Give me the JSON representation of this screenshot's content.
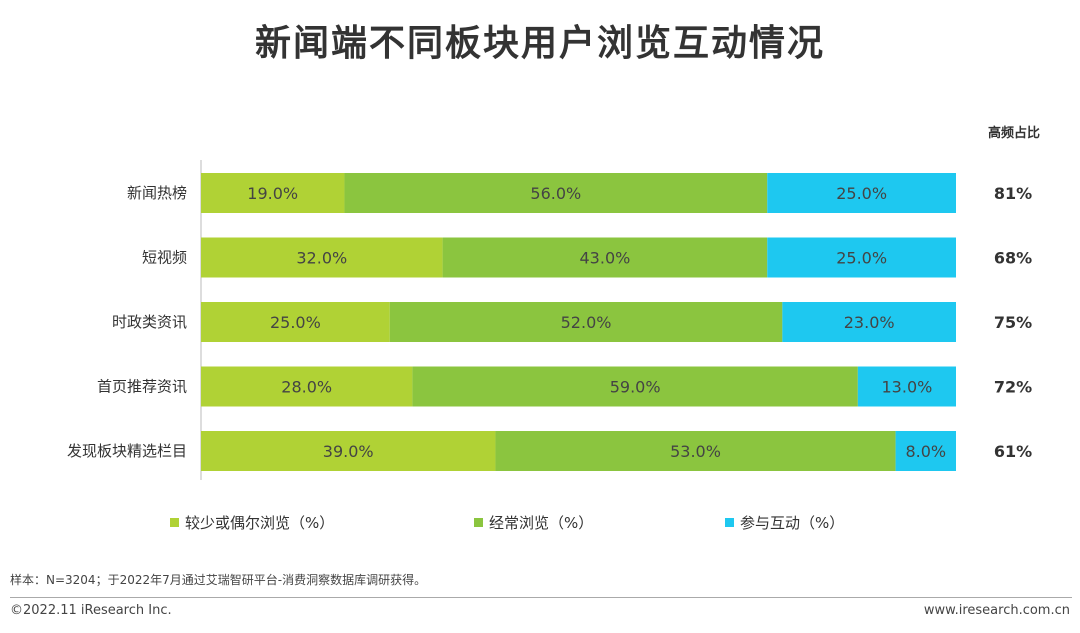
{
  "title": "新闻端不同板块用户浏览互动情况",
  "side_header": "高频占比",
  "chart_data": {
    "type": "bar",
    "orientation": "horizontal",
    "stacked": true,
    "unit": "%",
    "categories": [
      "新闻热榜",
      "短视频",
      "时政类资讯",
      "首页推荐资讯",
      "发现板块精选栏目"
    ],
    "series": [
      {
        "name": "较少或偶尔浏览（%）",
        "color": "#b0d235",
        "values": [
          19.0,
          32.0,
          25.0,
          28.0,
          39.0
        ]
      },
      {
        "name": "经常浏览（%）",
        "color": "#8bc53f",
        "values": [
          56.0,
          43.0,
          52.0,
          59.0,
          53.0
        ]
      },
      {
        "name": "参与互动（%）",
        "color": "#1ec8f0",
        "values": [
          25.0,
          25.0,
          23.0,
          13.0,
          8.0
        ]
      }
    ],
    "high_freq_share": [
      "81%",
      "68%",
      "75%",
      "72%",
      "61%"
    ]
  },
  "legend": [
    "较少或偶尔浏览（%）",
    "经常浏览（%）",
    "参与互动（%）"
  ],
  "note": "样本：N=3204；于2022年7月通过艾瑞智研平台-消费洞察数据库调研获得。",
  "footer": {
    "copyright": "©2022.11 iResearch Inc.",
    "url": "www.iresearch.com.cn"
  }
}
